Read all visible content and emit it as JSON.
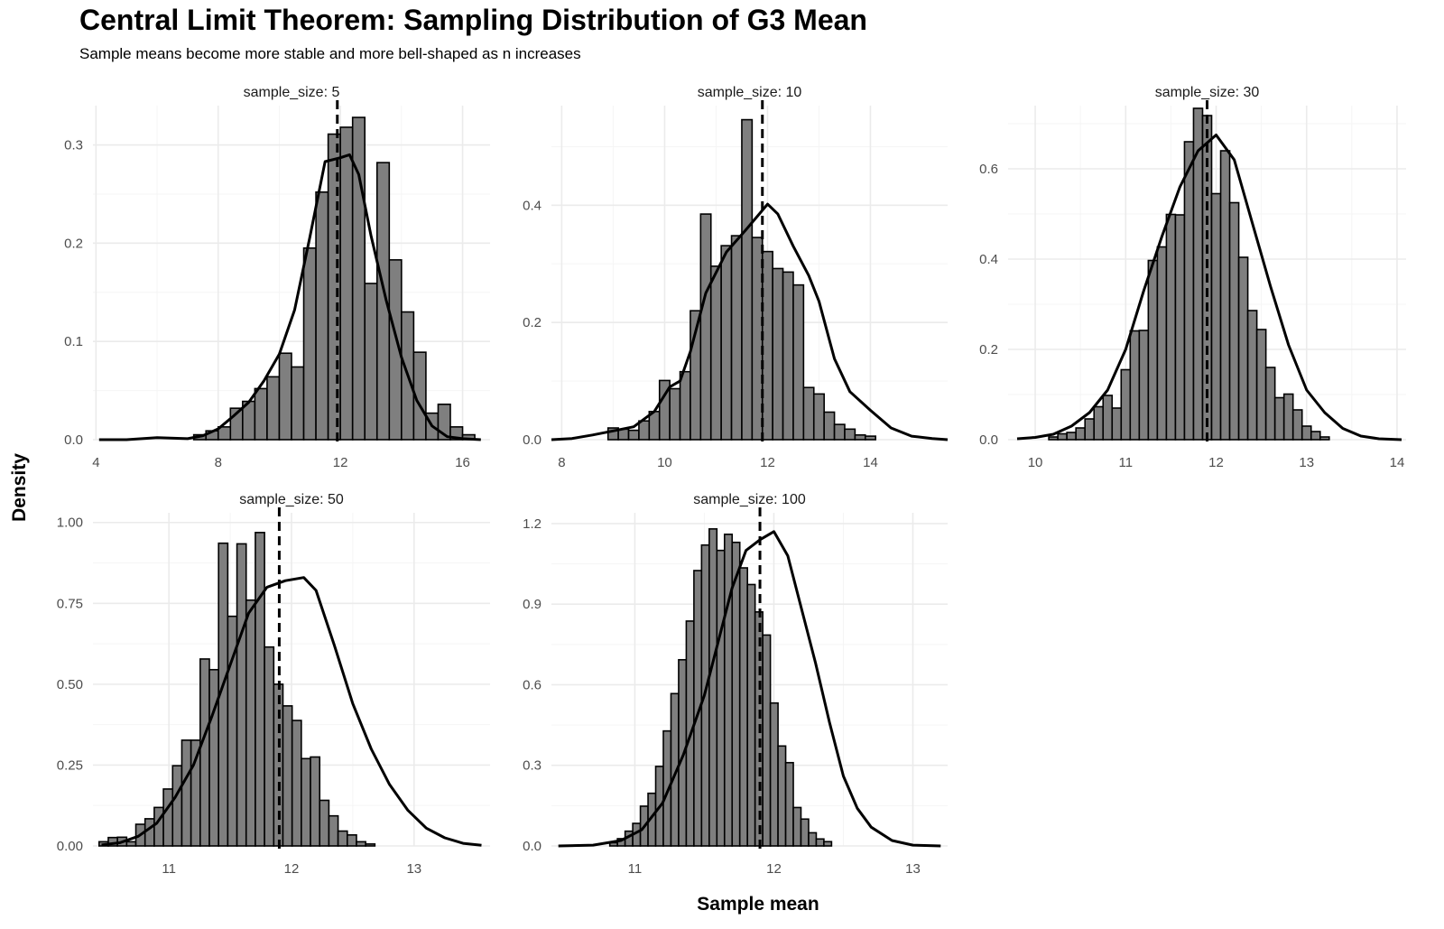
{
  "title": "Central Limit Theorem: Sampling Distribution of G3 Mean",
  "subtitle": "Sample means become more stable and more bell-shaped as n increases",
  "colors": {
    "bar_fill": "#7f7f7f",
    "bar_stroke": "#000000",
    "grid_major": "#ebebeb",
    "grid_minor": "#f5f5f5",
    "line": "#000000"
  },
  "chart_data": {
    "type": "bar",
    "facet_variable": "sample_size",
    "xlabel": "Sample mean",
    "ylabel": "Density",
    "grid": true,
    "mean_reference_line": 11.9,
    "panels": [
      {
        "strip": "sample_size: 5",
        "xlim": [
          3.9,
          16.9
        ],
        "ylim": [
          0,
          0.34
        ],
        "xticks": [
          4,
          8,
          12,
          16
        ],
        "xtick_labels": [
          "4",
          "8",
          "12",
          "16"
        ],
        "yticks": [
          0,
          0.1,
          0.2,
          0.3
        ],
        "ytick_labels": [
          "0.0",
          "0.1",
          "0.2",
          "0.3"
        ],
        "bin_start": 7.2,
        "bin_width": 0.4,
        "bars": [
          0.005,
          0.009,
          0.013,
          0.032,
          0.039,
          0.052,
          0.064,
          0.088,
          0.074,
          0.195,
          0.252,
          0.311,
          0.318,
          0.328,
          0.159,
          0.282,
          0.183,
          0.13,
          0.089,
          0.027,
          0.036,
          0.013,
          0.005
        ],
        "density": [
          [
            4.1,
            0.0
          ],
          [
            5.0,
            0.0
          ],
          [
            6.0,
            0.002
          ],
          [
            7.0,
            0.001
          ],
          [
            7.5,
            0.004
          ],
          [
            8.0,
            0.011
          ],
          [
            8.5,
            0.024
          ],
          [
            9.0,
            0.038
          ],
          [
            9.5,
            0.06
          ],
          [
            10.0,
            0.087
          ],
          [
            10.5,
            0.132
          ],
          [
            11.0,
            0.206
          ],
          [
            11.5,
            0.283
          ],
          [
            12.0,
            0.287
          ],
          [
            12.3,
            0.29
          ],
          [
            12.6,
            0.27
          ],
          [
            13.0,
            0.208
          ],
          [
            13.5,
            0.142
          ],
          [
            14.0,
            0.084
          ],
          [
            14.5,
            0.04
          ],
          [
            15.0,
            0.014
          ],
          [
            15.5,
            0.003
          ],
          [
            16.0,
            0.001
          ],
          [
            16.6,
            0.0
          ]
        ]
      },
      {
        "strip": "sample_size: 10",
        "xlim": [
          7.8,
          15.5
        ],
        "ylim": [
          0,
          0.57
        ],
        "xticks": [
          8,
          10,
          12,
          14
        ],
        "xtick_labels": [
          "8",
          "10",
          "12",
          "14"
        ],
        "yticks": [
          0,
          0.2,
          0.4
        ],
        "ytick_labels": [
          "0.0",
          "0.2",
          "0.4"
        ],
        "bin_start": 8.9,
        "bin_width": 0.2,
        "bars": [
          0.02,
          0.018,
          0.016,
          0.032,
          0.048,
          0.101,
          0.087,
          0.116,
          0.22,
          0.385,
          0.296,
          0.331,
          0.348,
          0.546,
          0.345,
          0.321,
          0.292,
          0.286,
          0.264,
          0.089,
          0.078,
          0.047,
          0.026,
          0.018,
          0.008,
          0.006
        ],
        "density": [
          [
            7.8,
            0.0
          ],
          [
            8.2,
            0.002
          ],
          [
            8.6,
            0.008
          ],
          [
            9.0,
            0.015
          ],
          [
            9.4,
            0.022
          ],
          [
            9.8,
            0.048
          ],
          [
            10.1,
            0.09
          ],
          [
            10.3,
            0.1
          ],
          [
            10.5,
            0.15
          ],
          [
            10.8,
            0.25
          ],
          [
            11.2,
            0.32
          ],
          [
            11.6,
            0.36
          ],
          [
            12.0,
            0.402
          ],
          [
            12.2,
            0.385
          ],
          [
            12.5,
            0.33
          ],
          [
            12.8,
            0.28
          ],
          [
            13.0,
            0.236
          ],
          [
            13.3,
            0.138
          ],
          [
            13.6,
            0.082
          ],
          [
            14.0,
            0.05
          ],
          [
            14.4,
            0.02
          ],
          [
            14.8,
            0.006
          ],
          [
            15.2,
            0.002
          ],
          [
            15.5,
            0.0
          ]
        ]
      },
      {
        "strip": "sample_size: 30",
        "xlim": [
          9.7,
          14.1
        ],
        "ylim": [
          0,
          0.74
        ],
        "xticks": [
          10,
          11,
          12,
          13,
          14
        ],
        "xtick_labels": [
          "10",
          "11",
          "12",
          "13",
          "14"
        ],
        "yticks": [
          0,
          0.2,
          0.4,
          0.6
        ],
        "ytick_labels": [
          "0.0",
          "0.2",
          "0.4",
          "0.6"
        ],
        "bin_start": 10.15,
        "bin_width": 0.1,
        "bars": [
          0.006,
          0.013,
          0.016,
          0.026,
          0.046,
          0.073,
          0.098,
          0.07,
          0.155,
          0.241,
          0.242,
          0.397,
          0.427,
          0.499,
          0.498,
          0.66,
          0.734,
          0.718,
          0.545,
          0.64,
          0.525,
          0.404,
          0.286,
          0.244,
          0.16,
          0.093,
          0.101,
          0.066,
          0.03,
          0.018,
          0.006
        ],
        "density": [
          [
            9.8,
            0.002
          ],
          [
            10.0,
            0.005
          ],
          [
            10.2,
            0.012
          ],
          [
            10.4,
            0.03
          ],
          [
            10.6,
            0.06
          ],
          [
            10.8,
            0.11
          ],
          [
            11.0,
            0.2
          ],
          [
            11.2,
            0.33
          ],
          [
            11.4,
            0.45
          ],
          [
            11.6,
            0.56
          ],
          [
            11.8,
            0.64
          ],
          [
            12.0,
            0.675
          ],
          [
            12.2,
            0.62
          ],
          [
            12.4,
            0.48
          ],
          [
            12.6,
            0.34
          ],
          [
            12.8,
            0.21
          ],
          [
            13.0,
            0.11
          ],
          [
            13.2,
            0.06
          ],
          [
            13.4,
            0.025
          ],
          [
            13.6,
            0.008
          ],
          [
            13.8,
            0.002
          ],
          [
            14.05,
            0.0
          ]
        ]
      },
      {
        "strip": "sample_size: 50",
        "xlim": [
          10.38,
          13.62
        ],
        "ylim": [
          0,
          1.03
        ],
        "xticks": [
          11,
          12,
          13
        ],
        "xtick_labels": [
          "11",
          "12",
          "13"
        ],
        "yticks": [
          0,
          0.25,
          0.5,
          0.75,
          1.0
        ],
        "ytick_labels": [
          "0.00",
          "0.25",
          "0.50",
          "0.75",
          "1.00"
        ],
        "bin_start": 10.43,
        "bin_width": 0.075,
        "bars": [
          0.013,
          0.026,
          0.027,
          0.013,
          0.067,
          0.084,
          0.119,
          0.176,
          0.248,
          0.327,
          0.327,
          0.578,
          0.545,
          0.936,
          0.71,
          0.934,
          0.76,
          0.969,
          0.615,
          0.5,
          0.433,
          0.388,
          0.27,
          0.275,
          0.141,
          0.093,
          0.046,
          0.034,
          0.013,
          0.006
        ],
        "density": [
          [
            10.45,
            0.003
          ],
          [
            10.6,
            0.01
          ],
          [
            10.75,
            0.03
          ],
          [
            10.9,
            0.07
          ],
          [
            11.05,
            0.15
          ],
          [
            11.2,
            0.25
          ],
          [
            11.35,
            0.4
          ],
          [
            11.5,
            0.56
          ],
          [
            11.65,
            0.72
          ],
          [
            11.8,
            0.8
          ],
          [
            11.95,
            0.82
          ],
          [
            12.1,
            0.83
          ],
          [
            12.2,
            0.79
          ],
          [
            12.35,
            0.62
          ],
          [
            12.5,
            0.44
          ],
          [
            12.65,
            0.3
          ],
          [
            12.8,
            0.19
          ],
          [
            12.95,
            0.11
          ],
          [
            13.1,
            0.055
          ],
          [
            13.25,
            0.025
          ],
          [
            13.4,
            0.008
          ],
          [
            13.55,
            0.002
          ]
        ]
      },
      {
        "strip": "sample_size: 100",
        "xlim": [
          10.4,
          13.25
        ],
        "ylim": [
          0,
          1.24
        ],
        "xticks": [
          11,
          12,
          13
        ],
        "xtick_labels": [
          "11",
          "12",
          "13"
        ],
        "yticks": [
          0,
          0.3,
          0.6,
          0.9,
          1.2
        ],
        "ytick_labels": [
          "0.0",
          "0.3",
          "0.6",
          "0.9",
          "1.2"
        ],
        "bin_start": 10.82,
        "bin_width": 0.055,
        "bars": [
          0.012,
          0.027,
          0.055,
          0.084,
          0.148,
          0.196,
          0.296,
          0.428,
          0.567,
          0.693,
          0.837,
          1.025,
          1.12,
          1.18,
          1.1,
          1.16,
          1.13,
          1.035,
          0.973,
          0.871,
          0.785,
          0.532,
          0.372,
          0.31,
          0.143,
          0.1,
          0.049,
          0.026,
          0.016
        ],
        "density": [
          [
            10.45,
            0.0
          ],
          [
            10.7,
            0.003
          ],
          [
            10.9,
            0.02
          ],
          [
            11.05,
            0.06
          ],
          [
            11.2,
            0.16
          ],
          [
            11.35,
            0.34
          ],
          [
            11.5,
            0.56
          ],
          [
            11.6,
            0.76
          ],
          [
            11.7,
            0.96
          ],
          [
            11.8,
            1.1
          ],
          [
            11.9,
            1.14
          ],
          [
            12.0,
            1.17
          ],
          [
            12.1,
            1.08
          ],
          [
            12.2,
            0.88
          ],
          [
            12.3,
            0.68
          ],
          [
            12.4,
            0.46
          ],
          [
            12.5,
            0.26
          ],
          [
            12.6,
            0.14
          ],
          [
            12.7,
            0.07
          ],
          [
            12.85,
            0.02
          ],
          [
            13.0,
            0.003
          ],
          [
            13.2,
            0.0
          ]
        ]
      }
    ]
  }
}
